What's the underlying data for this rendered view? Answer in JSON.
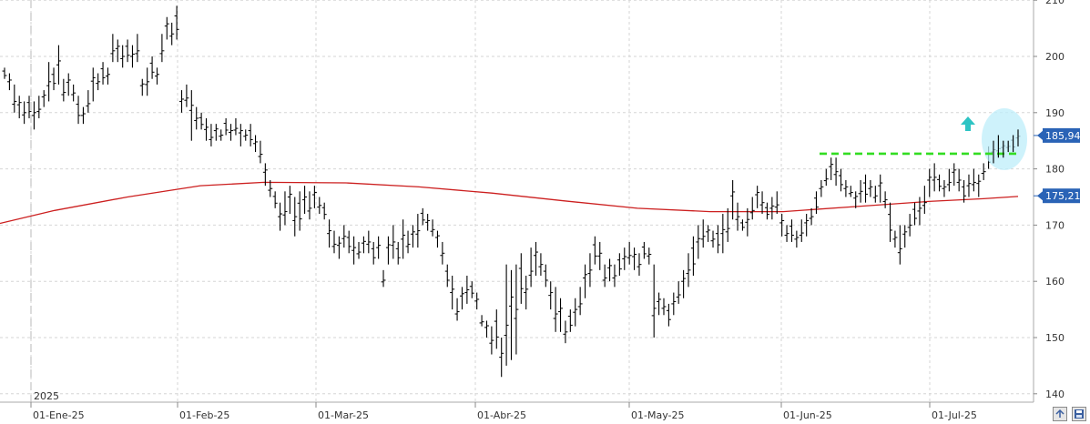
{
  "chart_data": {
    "type": "ohlc",
    "x_tick_labels": [
      "01-Ene-25",
      "01-Feb-25",
      "01-Mar-25",
      "01-Abr-25",
      "01-May-25",
      "01-Jun-25",
      "01-Jul-25"
    ],
    "year_label": "2025",
    "y_tick_labels": [
      "210",
      "200",
      "190",
      "180",
      "170",
      "160",
      "150",
      "140"
    ],
    "ylim": [
      137,
      212
    ],
    "grid": true,
    "series": [
      {
        "values": [
          [
            198,
            196
          ],
          [
            197,
            194
          ],
          [
            195,
            190
          ],
          [
            193,
            189
          ],
          [
            192,
            188
          ],
          [
            193,
            189
          ],
          [
            192,
            187
          ],
          [
            193,
            189
          ],
          [
            194,
            191
          ],
          [
            199,
            192
          ],
          [
            198,
            194
          ],
          [
            202,
            195
          ],
          [
            196,
            192
          ],
          [
            197,
            193
          ],
          [
            195,
            192
          ],
          [
            193,
            188
          ],
          [
            191,
            188
          ],
          [
            194,
            190
          ],
          [
            198,
            192
          ],
          [
            197,
            194
          ],
          [
            199,
            195
          ],
          [
            198,
            195
          ],
          [
            204,
            199
          ],
          [
            203,
            199
          ],
          [
            202,
            198
          ],
          [
            203,
            199
          ],
          [
            202,
            198
          ],
          [
            204,
            199
          ],
          [
            196,
            193
          ],
          [
            198,
            193
          ],
          [
            200,
            196
          ],
          [
            198,
            195
          ],
          [
            204,
            199
          ],
          [
            207,
            203
          ],
          [
            206,
            202
          ],
          [
            209,
            203
          ],
          [
            194,
            190
          ],
          [
            195,
            191
          ],
          [
            194,
            185
          ],
          [
            191,
            187
          ],
          [
            190,
            187
          ],
          [
            189,
            185
          ],
          [
            188,
            184
          ],
          [
            188,
            185
          ],
          [
            187,
            185
          ],
          [
            189,
            186
          ],
          [
            188,
            185
          ],
          [
            189,
            186
          ],
          [
            188,
            184
          ],
          [
            187,
            185
          ],
          [
            188,
            184
          ],
          [
            186,
            183
          ],
          [
            185,
            181
          ],
          [
            181,
            177
          ],
          [
            178,
            175
          ],
          [
            176,
            173
          ],
          [
            174,
            169
          ],
          [
            176,
            170
          ],
          [
            177,
            172
          ],
          [
            175,
            168
          ],
          [
            176,
            169
          ],
          [
            177,
            172
          ],
          [
            176,
            171
          ],
          [
            177,
            173
          ],
          [
            175,
            172
          ],
          [
            174,
            171
          ],
          [
            171,
            166
          ],
          [
            169,
            165
          ],
          [
            168,
            164
          ],
          [
            170,
            166
          ],
          [
            169,
            165
          ],
          [
            168,
            163
          ],
          [
            167,
            164
          ],
          [
            168,
            165
          ],
          [
            169,
            165
          ],
          [
            167,
            163
          ],
          [
            168,
            164
          ],
          [
            162,
            159
          ],
          [
            168,
            163
          ],
          [
            170,
            164
          ],
          [
            167,
            163
          ],
          [
            171,
            164
          ],
          [
            169,
            165
          ],
          [
            170,
            166
          ],
          [
            172,
            166
          ],
          [
            173,
            170
          ],
          [
            172,
            169
          ],
          [
            171,
            168
          ],
          [
            169,
            166
          ],
          [
            167,
            163
          ],
          [
            163,
            159
          ],
          [
            161,
            155
          ],
          [
            157,
            153
          ],
          [
            159,
            155
          ],
          [
            161,
            156
          ],
          [
            160,
            157
          ],
          [
            158,
            155
          ],
          [
            154,
            152
          ],
          [
            153,
            150
          ],
          [
            152,
            147
          ],
          [
            155,
            148
          ],
          [
            150,
            143
          ],
          [
            163,
            145
          ],
          [
            162,
            146
          ],
          [
            163,
            147
          ],
          [
            165,
            156
          ],
          [
            161,
            155
          ],
          [
            166,
            159
          ],
          [
            167,
            161
          ],
          [
            165,
            161
          ],
          [
            163,
            159
          ],
          [
            160,
            155
          ],
          [
            159,
            151
          ],
          [
            157,
            151
          ],
          [
            153,
            149
          ],
          [
            155,
            151
          ],
          [
            157,
            152
          ],
          [
            159,
            154
          ],
          [
            163,
            157
          ],
          [
            165,
            159
          ],
          [
            168,
            163
          ],
          [
            167,
            162
          ],
          [
            163,
            159
          ],
          [
            164,
            160
          ],
          [
            163,
            159
          ],
          [
            165,
            161
          ],
          [
            166,
            162
          ],
          [
            167,
            163
          ],
          [
            166,
            162
          ],
          [
            165,
            161
          ],
          [
            167,
            164
          ],
          [
            166,
            163
          ],
          [
            163,
            150
          ],
          [
            158,
            154
          ],
          [
            157,
            154
          ],
          [
            156,
            152
          ],
          [
            158,
            154
          ],
          [
            160,
            156
          ],
          [
            162,
            157
          ],
          [
            165,
            159
          ],
          [
            168,
            161
          ],
          [
            170,
            164
          ],
          [
            171,
            166
          ],
          [
            170,
            167
          ],
          [
            169,
            166
          ],
          [
            170,
            165
          ],
          [
            172,
            165
          ],
          [
            173,
            167
          ],
          [
            178,
            171
          ],
          [
            174,
            169
          ],
          [
            171,
            169
          ],
          [
            173,
            168
          ],
          [
            175,
            171
          ],
          [
            177,
            173
          ],
          [
            176,
            172
          ],
          [
            174,
            171
          ],
          [
            175,
            171
          ],
          [
            176,
            172
          ],
          [
            172,
            168
          ],
          [
            170,
            167
          ],
          [
            171,
            167
          ],
          [
            169,
            166
          ],
          [
            171,
            167
          ],
          [
            172,
            168
          ],
          [
            173,
            170
          ],
          [
            176,
            172
          ],
          [
            178,
            175
          ],
          [
            180,
            177
          ],
          [
            182,
            178
          ],
          [
            182,
            177
          ],
          [
            180,
            176
          ],
          [
            178,
            175
          ],
          [
            177,
            175
          ],
          [
            176,
            173
          ],
          [
            178,
            174
          ],
          [
            179,
            174
          ],
          [
            178,
            175
          ],
          [
            177,
            174
          ],
          [
            179,
            174
          ],
          [
            176,
            173
          ],
          [
            174,
            167
          ],
          [
            169,
            166
          ],
          [
            170,
            163
          ],
          [
            170,
            166
          ],
          [
            172,
            168
          ],
          [
            174,
            170
          ],
          [
            175,
            170
          ],
          [
            177,
            172
          ],
          [
            180,
            175
          ],
          [
            181,
            176
          ],
          [
            179,
            176
          ],
          [
            178,
            175
          ],
          [
            180,
            176
          ],
          [
            181,
            177
          ],
          [
            180,
            176
          ],
          [
            178,
            174
          ],
          [
            179,
            175
          ],
          [
            180,
            176
          ],
          [
            179,
            175
          ],
          [
            181,
            178
          ],
          [
            184,
            180
          ],
          [
            185,
            181
          ],
          [
            186,
            182
          ],
          [
            185,
            182
          ],
          [
            185,
            183
          ],
          [
            186,
            183
          ],
          [
            187,
            184
          ]
        ]
      },
      {
        "values": [
          [
            0,
            170.3
          ],
          [
            60,
            172.6
          ],
          [
            140,
            175.0
          ],
          [
            220,
            177.0
          ],
          [
            290,
            177.6
          ],
          [
            380,
            177.5
          ],
          [
            460,
            176.8
          ],
          [
            540,
            175.7
          ],
          [
            620,
            174.3
          ],
          [
            700,
            173.0
          ],
          [
            780,
            172.4
          ],
          [
            860,
            172.4
          ],
          [
            940,
            173.3
          ],
          [
            1020,
            174.2
          ],
          [
            1080,
            174.7
          ],
          [
            1118,
            175.1
          ]
        ]
      }
    ],
    "annotations": {
      "resistance_level": 182.7,
      "last_price": "185,94",
      "ma_value": "175,21"
    }
  },
  "colors": {
    "price_bars": "#000000",
    "moving_average": "#cc1f1f",
    "resistance_line": "#33dd22",
    "highlight_ellipse": "#bdeefa",
    "up_arrow": "#2ec4c4",
    "last_price_tag": "#2a63b6",
    "ma_tag": "#2a63b6",
    "grid": "#d6d6d6"
  },
  "controls": {
    "add_icon": "plus-chart-icon",
    "save_icon": "floppy-disk-icon"
  }
}
